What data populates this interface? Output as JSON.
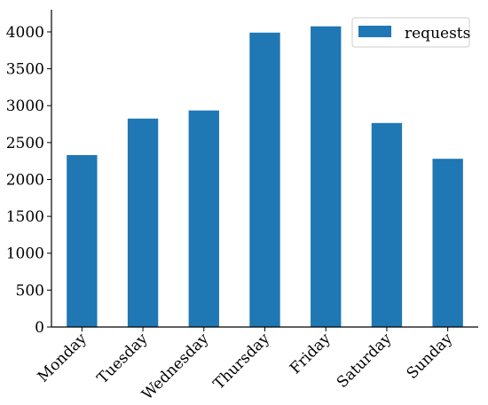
{
  "chart_data": {
    "type": "bar",
    "categories": [
      "Monday",
      "Tuesday",
      "Wednesday",
      "Thursday",
      "Friday",
      "Saturday",
      "Sunday"
    ],
    "series": [
      {
        "name": "requests",
        "color": "#1f77b4",
        "values": [
          2330,
          2825,
          2935,
          3990,
          4075,
          2765,
          2280
        ]
      }
    ],
    "title": "",
    "xlabel": "",
    "ylabel": "",
    "ylim": [
      0,
      4300
    ],
    "yticks": [
      0,
      500,
      1000,
      1500,
      2000,
      2500,
      3000,
      3500,
      4000
    ],
    "grid": false,
    "legend_position": "top-right",
    "x_tick_rotation": -45
  }
}
